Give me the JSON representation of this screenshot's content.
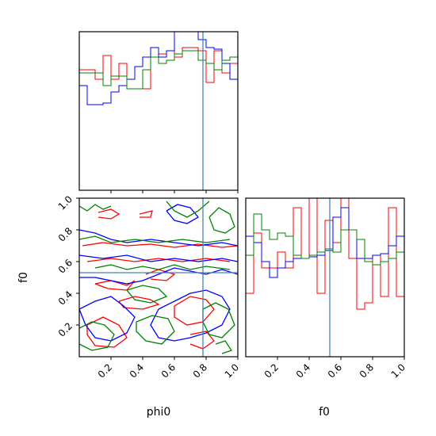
{
  "figure": {
    "type": "corner plot",
    "parameters": [
      "phi0",
      "f0"
    ],
    "truths": {
      "phi0": 0.78,
      "f0": 0.53
    },
    "truth_color": "#4682b4",
    "series_colors": [
      "#ff0000",
      "#0000ff",
      "#008000"
    ]
  },
  "chart_data": [
    {
      "type": "histogram",
      "panel": "phi0",
      "xlim": [
        0,
        1
      ],
      "truth": 0.78,
      "bin_edges": [
        0.0,
        0.05,
        0.1,
        0.15,
        0.2,
        0.25,
        0.3,
        0.35,
        0.4,
        0.45,
        0.5,
        0.55,
        0.6,
        0.65,
        0.7,
        0.75,
        0.8,
        0.85,
        0.9,
        0.95,
        1.0
      ],
      "series": [
        {
          "color": "#ff0000",
          "heights": [
            0.76,
            0.76,
            0.7,
            0.85,
            0.7,
            0.8,
            0.64,
            0.64,
            0.64,
            0.84,
            0.86,
            0.88,
            0.84,
            0.9,
            0.9,
            0.88,
            0.68,
            0.88,
            0.74,
            0.8
          ]
        },
        {
          "color": "#0000ff",
          "heights": [
            0.66,
            0.54,
            0.54,
            0.55,
            0.62,
            0.66,
            0.7,
            0.78,
            0.84,
            0.9,
            0.84,
            0.88,
            1.01,
            1.01,
            1.01,
            0.95,
            0.9,
            0.89,
            0.8,
            0.7
          ]
        },
        {
          "color": "#008000",
          "heights": [
            0.74,
            0.74,
            0.74,
            0.66,
            0.72,
            0.72,
            0.64,
            0.64,
            0.76,
            0.84,
            0.8,
            0.82,
            0.86,
            0.88,
            0.88,
            0.82,
            0.8,
            0.76,
            0.82,
            0.84
          ]
        }
      ]
    },
    {
      "type": "contour",
      "panel": "phi0 vs f0",
      "xlabel": "phi0",
      "ylabel": "f0",
      "xlim": [
        0,
        1
      ],
      "ylim": [
        0,
        1
      ],
      "xticks": [
        "0.2",
        "0.4",
        "0.6",
        "0.8",
        "1.0"
      ],
      "yticks": [
        "0.2",
        "0.4",
        "0.6",
        "0.8",
        "1.0"
      ],
      "truth_x": 0.78,
      "truth_y": 0.53,
      "series": [
        {
          "color": "#ff0000",
          "contours": [
            [
              [
                0.12,
                0.91
              ],
              [
                0.2,
                0.93
              ],
              [
                0.25,
                0.9
              ],
              [
                0.2,
                0.87
              ],
              [
                0.12,
                0.88
              ]
            ],
            [
              [
                0.38,
                0.9
              ],
              [
                0.46,
                0.92
              ],
              [
                0.45,
                0.88
              ],
              [
                0.38,
                0.88
              ]
            ],
            [
              [
                0.02,
                0.7
              ],
              [
                0.15,
                0.72
              ],
              [
                0.3,
                0.7
              ],
              [
                0.45,
                0.71
              ],
              [
                0.6,
                0.69
              ],
              [
                0.75,
                0.71
              ],
              [
                0.9,
                0.69
              ],
              [
                1.0,
                0.7
              ]
            ],
            [
              [
                0.05,
                0.6
              ],
              [
                0.2,
                0.62
              ],
              [
                0.35,
                0.6
              ],
              [
                0.5,
                0.62
              ],
              [
                0.65,
                0.6
              ],
              [
                0.8,
                0.62
              ],
              [
                0.95,
                0.6
              ]
            ],
            [
              [
                0.1,
                0.46
              ],
              [
                0.2,
                0.48
              ],
              [
                0.3,
                0.45
              ],
              [
                0.35,
                0.48
              ],
              [
                0.3,
                0.42
              ],
              [
                0.18,
                0.43
              ],
              [
                0.1,
                0.46
              ]
            ],
            [
              [
                0.42,
                0.52
              ],
              [
                0.5,
                0.55
              ],
              [
                0.6,
                0.52
              ],
              [
                0.55,
                0.48
              ],
              [
                0.45,
                0.49
              ]
            ],
            [
              [
                0.25,
                0.35
              ],
              [
                0.35,
                0.38
              ],
              [
                0.45,
                0.36
              ],
              [
                0.5,
                0.33
              ],
              [
                0.4,
                0.3
              ],
              [
                0.28,
                0.31
              ],
              [
                0.25,
                0.35
              ]
            ],
            [
              [
                0.05,
                0.2
              ],
              [
                0.15,
                0.25
              ],
              [
                0.25,
                0.2
              ],
              [
                0.3,
                0.12
              ],
              [
                0.22,
                0.06
              ],
              [
                0.1,
                0.07
              ],
              [
                0.05,
                0.14
              ],
              [
                0.05,
                0.2
              ]
            ],
            [
              [
                0.6,
                0.32
              ],
              [
                0.7,
                0.38
              ],
              [
                0.8,
                0.36
              ],
              [
                0.85,
                0.3
              ],
              [
                0.78,
                0.22
              ],
              [
                0.68,
                0.2
              ],
              [
                0.6,
                0.25
              ],
              [
                0.6,
                0.32
              ]
            ],
            [
              [
                0.7,
                0.14
              ],
              [
                0.8,
                0.16
              ],
              [
                0.85,
                0.1
              ],
              [
                0.78,
                0.05
              ],
              [
                0.7,
                0.08
              ]
            ]
          ]
        },
        {
          "color": "#0000ff",
          "contours": [
            [
              [
                0.0,
                0.8
              ],
              [
                0.1,
                0.78
              ],
              [
                0.2,
                0.74
              ],
              [
                0.3,
                0.72
              ],
              [
                0.45,
                0.74
              ],
              [
                0.6,
                0.72
              ],
              [
                0.75,
                0.7
              ],
              [
                0.9,
                0.72
              ],
              [
                1.0,
                0.7
              ]
            ],
            [
              [
                0.0,
                0.64
              ],
              [
                0.15,
                0.62
              ],
              [
                0.3,
                0.64
              ],
              [
                0.45,
                0.6
              ],
              [
                0.6,
                0.62
              ],
              [
                0.75,
                0.6
              ],
              [
                0.9,
                0.62
              ],
              [
                1.0,
                0.6
              ]
            ],
            [
              [
                0.0,
                0.5
              ],
              [
                0.1,
                0.5
              ],
              [
                0.2,
                0.48
              ],
              [
                0.3,
                0.46
              ],
              [
                0.4,
                0.48
              ],
              [
                0.5,
                0.52
              ],
              [
                0.6,
                0.56
              ],
              [
                0.7,
                0.54
              ],
              [
                0.8,
                0.52
              ],
              [
                0.9,
                0.55
              ],
              [
                1.0,
                0.52
              ]
            ],
            [
              [
                0.0,
                0.3
              ],
              [
                0.1,
                0.35
              ],
              [
                0.2,
                0.38
              ],
              [
                0.28,
                0.32
              ],
              [
                0.35,
                0.25
              ],
              [
                0.3,
                0.15
              ],
              [
                0.2,
                0.1
              ],
              [
                0.1,
                0.12
              ],
              [
                0.04,
                0.2
              ],
              [
                0.0,
                0.3
              ]
            ],
            [
              [
                0.5,
                0.3
              ],
              [
                0.6,
                0.35
              ],
              [
                0.7,
                0.4
              ],
              [
                0.8,
                0.42
              ],
              [
                0.9,
                0.38
              ],
              [
                0.95,
                0.3
              ],
              [
                0.9,
                0.2
              ],
              [
                0.8,
                0.15
              ],
              [
                0.7,
                0.12
              ],
              [
                0.6,
                0.1
              ],
              [
                0.5,
                0.12
              ],
              [
                0.45,
                0.2
              ],
              [
                0.5,
                0.3
              ]
            ],
            [
              [
                0.55,
                0.92
              ],
              [
                0.62,
                0.96
              ],
              [
                0.7,
                0.94
              ],
              [
                0.75,
                0.88
              ],
              [
                0.68,
                0.84
              ],
              [
                0.6,
                0.86
              ],
              [
                0.55,
                0.92
              ]
            ]
          ]
        },
        {
          "color": "#008000",
          "contours": [
            [
              [
                0.0,
                0.95
              ],
              [
                0.05,
                0.92
              ],
              [
                0.1,
                0.96
              ],
              [
                0.15,
                0.93
              ],
              [
                0.2,
                0.95
              ]
            ],
            [
              [
                0.55,
                0.98
              ],
              [
                0.6,
                0.92
              ],
              [
                0.68,
                0.88
              ],
              [
                0.75,
                0.92
              ],
              [
                0.82,
                0.98
              ]
            ],
            [
              [
                0.82,
                0.88
              ],
              [
                0.88,
                0.94
              ],
              [
                0.95,
                0.9
              ],
              [
                0.98,
                0.82
              ],
              [
                0.92,
                0.78
              ],
              [
                0.85,
                0.8
              ],
              [
                0.82,
                0.88
              ]
            ],
            [
              [
                0.0,
                0.74
              ],
              [
                0.1,
                0.76
              ],
              [
                0.2,
                0.72
              ],
              [
                0.35,
                0.74
              ],
              [
                0.5,
                0.72
              ],
              [
                0.65,
                0.74
              ],
              [
                0.8,
                0.72
              ],
              [
                0.95,
                0.74
              ]
            ],
            [
              [
                0.1,
                0.56
              ],
              [
                0.2,
                0.58
              ],
              [
                0.3,
                0.55
              ],
              [
                0.4,
                0.57
              ],
              [
                0.5,
                0.55
              ],
              [
                0.6,
                0.58
              ],
              [
                0.7,
                0.55
              ],
              [
                0.8,
                0.57
              ],
              [
                0.95,
                0.55
              ]
            ],
            [
              [
                0.3,
                0.42
              ],
              [
                0.4,
                0.45
              ],
              [
                0.5,
                0.43
              ],
              [
                0.55,
                0.38
              ],
              [
                0.45,
                0.34
              ],
              [
                0.35,
                0.36
              ],
              [
                0.3,
                0.42
              ]
            ],
            [
              [
                0.0,
                0.18
              ],
              [
                0.08,
                0.22
              ],
              [
                0.16,
                0.2
              ],
              [
                0.22,
                0.14
              ],
              [
                0.18,
                0.06
              ],
              [
                0.08,
                0.04
              ],
              [
                0.0,
                0.08
              ]
            ],
            [
              [
                0.36,
                0.22
              ],
              [
                0.46,
                0.26
              ],
              [
                0.56,
                0.24
              ],
              [
                0.6,
                0.16
              ],
              [
                0.52,
                0.08
              ],
              [
                0.42,
                0.1
              ],
              [
                0.36,
                0.16
              ],
              [
                0.36,
                0.22
              ]
            ],
            [
              [
                0.78,
                0.3
              ],
              [
                0.86,
                0.34
              ],
              [
                0.94,
                0.3
              ],
              [
                0.98,
                0.2
              ],
              [
                0.9,
                0.12
              ],
              [
                0.82,
                0.14
              ],
              [
                0.78,
                0.22
              ],
              [
                0.78,
                0.3
              ]
            ],
            [
              [
                0.86,
                0.08
              ],
              [
                0.92,
                0.1
              ],
              [
                0.96,
                0.04
              ],
              [
                0.9,
                0.02
              ]
            ]
          ]
        }
      ]
    },
    {
      "type": "histogram",
      "panel": "f0",
      "xlabel": "f0",
      "xlim": [
        0,
        1
      ],
      "xticks": [
        "0.2",
        "0.4",
        "0.6",
        "0.8",
        "1.0"
      ],
      "truth": 0.53,
      "bin_edges": [
        0.0,
        0.05,
        0.1,
        0.15,
        0.2,
        0.25,
        0.3,
        0.35,
        0.4,
        0.45,
        0.5,
        0.55,
        0.6,
        0.65,
        0.7,
        0.75,
        0.8,
        0.85,
        0.9,
        0.95,
        1.0
      ],
      "series": [
        {
          "color": "#ff0000",
          "heights": [
            0.4,
            0.78,
            0.56,
            0.56,
            0.66,
            0.56,
            0.94,
            0.62,
            1.01,
            0.4,
            0.86,
            0.72,
            1.01,
            0.62,
            0.3,
            0.34,
            0.64,
            0.38,
            0.94,
            0.38
          ]
        },
        {
          "color": "#0000ff",
          "heights": [
            0.76,
            0.72,
            0.6,
            0.5,
            0.56,
            0.6,
            0.62,
            0.62,
            0.63,
            0.64,
            0.67,
            0.88,
            0.94,
            0.8,
            0.62,
            0.62,
            0.64,
            0.65,
            0.7,
            0.76
          ]
        },
        {
          "color": "#008000",
          "heights": [
            0.64,
            0.9,
            0.8,
            0.74,
            0.78,
            0.76,
            0.64,
            0.62,
            0.64,
            0.66,
            0.68,
            0.66,
            0.8,
            0.8,
            0.74,
            0.6,
            0.58,
            0.6,
            0.62,
            0.66
          ]
        }
      ]
    }
  ]
}
